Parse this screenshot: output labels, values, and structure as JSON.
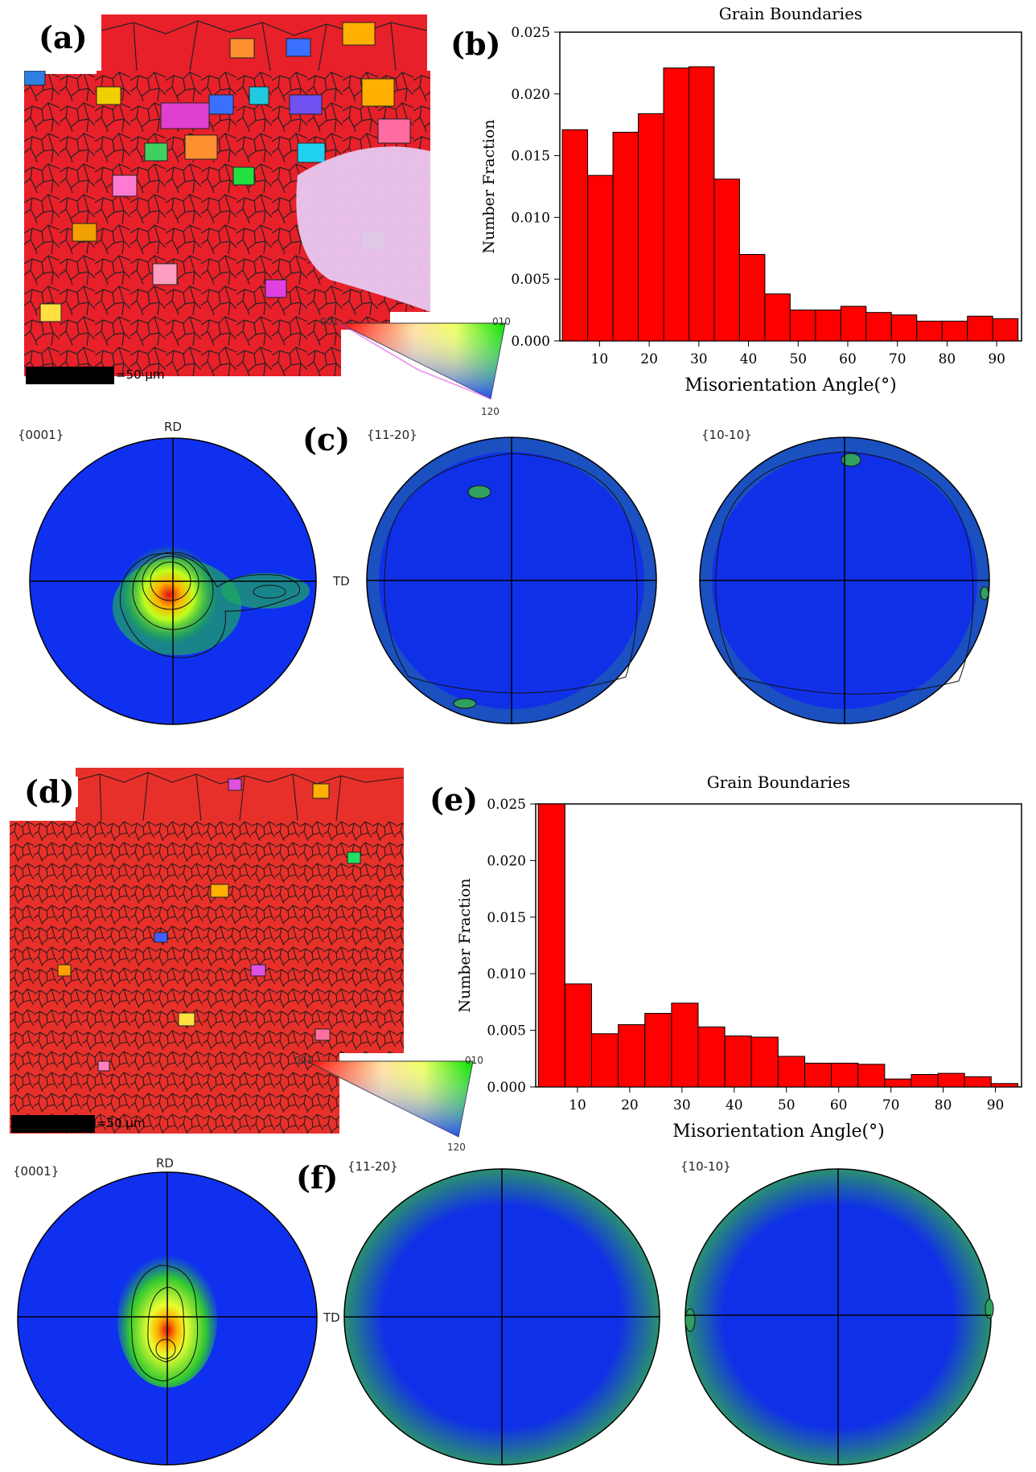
{
  "panels": {
    "a": "(a)",
    "b": "(b)",
    "c": "(c)",
    "d": "(d)",
    "e": "(e)",
    "f": "(f)"
  },
  "ebsd": {
    "top": {
      "scale": "=50 μm"
    },
    "bottom": {
      "scale": "=50 μm"
    }
  },
  "ipf_key": {
    "c001": "001",
    "c010": "010",
    "c120": "120"
  },
  "pole_figures": {
    "basal": "{0001}",
    "prism1": "{11-20}",
    "prism2": "{10-10}",
    "rd": "RD",
    "td": "TD"
  },
  "chart_data": [
    {
      "id": "b",
      "type": "bar",
      "title": "Grain Boundaries",
      "xlabel": "Misorientation Angle(°)",
      "ylabel": "Number Fraction",
      "xlim": [
        2,
        95
      ],
      "ylim": [
        0,
        0.025
      ],
      "xticks": [
        10,
        20,
        30,
        40,
        50,
        60,
        70,
        80,
        90
      ],
      "yticks": [
        "0.000",
        "0.005",
        "0.010",
        "0.015",
        "0.020",
        "0.025"
      ],
      "bin_edges": [
        2.5,
        7.6,
        12.7,
        17.8,
        22.9,
        28.0,
        33.1,
        38.2,
        43.3,
        48.4,
        53.5,
        58.6,
        63.7,
        68.8,
        73.9,
        79.0,
        84.1,
        89.2,
        94.3
      ],
      "values": [
        0.0171,
        0.0134,
        0.0169,
        0.0184,
        0.0221,
        0.0222,
        0.0131,
        0.007,
        0.0038,
        0.0025,
        0.0025,
        0.0028,
        0.0023,
        0.0021,
        0.0016,
        0.0016,
        0.002,
        0.0018
      ]
    },
    {
      "id": "e",
      "type": "bar",
      "title": "Grain Boundaries",
      "xlabel": "Misorientation Angle(°)",
      "ylabel": "Number Fraction",
      "xlim": [
        2,
        95
      ],
      "ylim": [
        0,
        0.025
      ],
      "xticks": [
        10,
        20,
        30,
        40,
        50,
        60,
        70,
        80,
        90
      ],
      "yticks": [
        "0.000",
        "0.005",
        "0.010",
        "0.015",
        "0.020",
        "0.025"
      ],
      "bin_edges": [
        2.5,
        7.6,
        12.7,
        17.8,
        22.9,
        28.0,
        33.1,
        38.2,
        43.3,
        48.4,
        53.5,
        58.6,
        63.7,
        68.8,
        73.9,
        79.0,
        84.1,
        89.2,
        94.3
      ],
      "values": [
        0.025,
        0.0091,
        0.0047,
        0.0055,
        0.0065,
        0.0074,
        0.0053,
        0.0045,
        0.0044,
        0.0027,
        0.0021,
        0.0021,
        0.002,
        0.0007,
        0.0011,
        0.0012,
        0.0009,
        0.0003
      ]
    }
  ]
}
